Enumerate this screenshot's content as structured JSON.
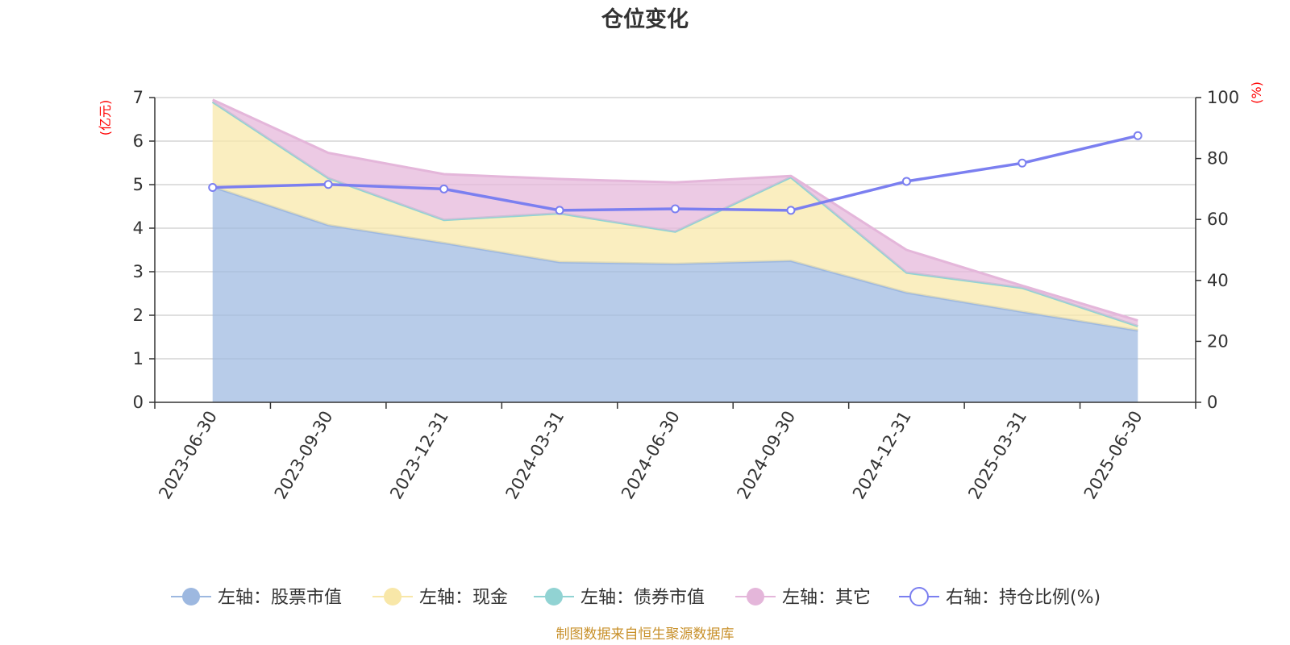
{
  "title": "仓位变化",
  "source_note": "制图数据来自恒生聚源数据库",
  "left_axis": {
    "unit_label": "(亿元)",
    "ticks": [
      "0",
      "1",
      "2",
      "3",
      "4",
      "5",
      "6",
      "7"
    ],
    "range": [
      0,
      7
    ]
  },
  "right_axis": {
    "unit_label": "(%)",
    "ticks": [
      "0",
      "20",
      "40",
      "60",
      "80",
      "100"
    ],
    "range": [
      0,
      100
    ]
  },
  "colors": {
    "stock": "#9db8e0",
    "cash": "#f8e7a8",
    "bond": "#91d3d3",
    "other": "#e4b6da",
    "ratio": "#7b7ff0",
    "grid": "#cccccc",
    "axis": "#333333",
    "unit": "#ff0000"
  },
  "legend": [
    {
      "label": "左轴：股票市值",
      "key": "stock",
      "style": "filled"
    },
    {
      "label": "左轴：现金",
      "key": "cash",
      "style": "filled"
    },
    {
      "label": "左轴：债券市值",
      "key": "bond",
      "style": "filled"
    },
    {
      "label": "左轴：其它",
      "key": "other",
      "style": "filled"
    },
    {
      "label": "右轴：持仓比例(%)",
      "key": "ratio",
      "style": "hollow"
    }
  ],
  "chart_data": {
    "type": "area",
    "title": "仓位变化",
    "categories": [
      "2023-06-30",
      "2023-09-30",
      "2023-12-31",
      "2024-03-31",
      "2024-06-30",
      "2024-09-30",
      "2024-12-31",
      "2025-03-31",
      "2025-06-30"
    ],
    "stacked": true,
    "series": [
      {
        "name": "左轴：股票市值",
        "axis": "left",
        "type": "area",
        "values": [
          4.95,
          4.07,
          3.66,
          3.22,
          3.18,
          3.25,
          2.52,
          2.08,
          1.65
        ]
      },
      {
        "name": "左轴：现金",
        "axis": "left",
        "type": "area",
        "values": [
          1.95,
          1.08,
          0.53,
          1.12,
          0.74,
          1.92,
          0.46,
          0.55,
          0.1
        ]
      },
      {
        "name": "左轴：债券市值",
        "axis": "left",
        "type": "area",
        "values": [
          0,
          0,
          0,
          0,
          0,
          0,
          0,
          0,
          0
        ]
      },
      {
        "name": "左轴：其它",
        "axis": "left",
        "type": "area",
        "values": [
          0.05,
          0.58,
          1.05,
          0.79,
          1.13,
          0.03,
          0.52,
          0.05,
          0.13
        ]
      },
      {
        "name": "右轴：持仓比例(%)",
        "axis": "right",
        "type": "line",
        "values": [
          70.5,
          71.5,
          70.0,
          63.0,
          63.5,
          63.0,
          72.5,
          78.5,
          87.5
        ]
      }
    ],
    "left_ylim": [
      0,
      7
    ],
    "right_ylim": [
      0,
      100
    ],
    "grid": true,
    "legend_position": "bottom"
  }
}
